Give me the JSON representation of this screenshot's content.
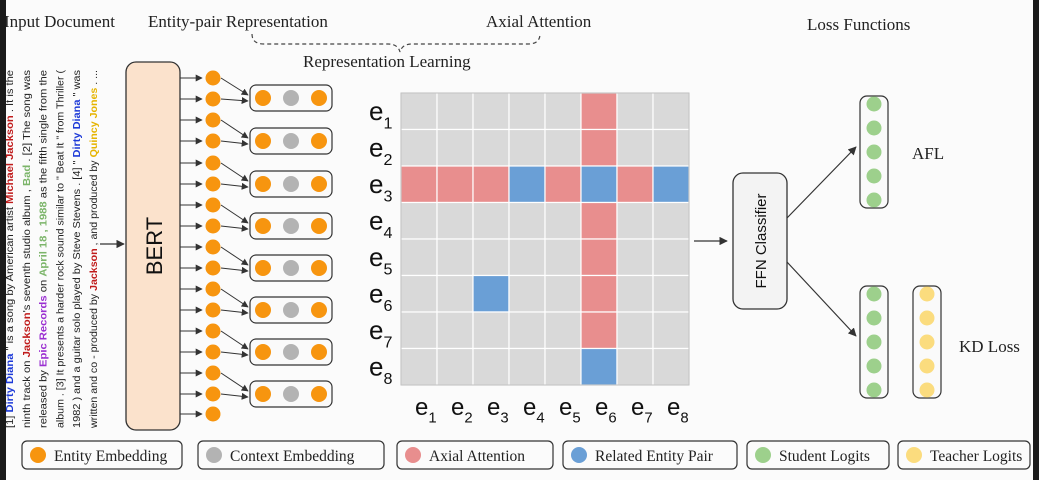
{
  "headings": {
    "input_document": "Input Document",
    "entity_pair_representation": "Entity-pair Representation",
    "axial_attention": "Axial Attention",
    "representation_learning": "Representation Learning",
    "loss_functions": "Loss Functions"
  },
  "document_lines": [
    [
      {
        "t": "[1] "
      },
      {
        "t": "Dirty Diana",
        "c": "blue"
      },
      {
        "t": " \" is a song by American artist "
      },
      {
        "t": "Michael Jackson",
        "c": "red"
      },
      {
        "t": " . It is the"
      }
    ],
    [
      {
        "t": "ninth track on "
      },
      {
        "t": "Jackson",
        "c": "red"
      },
      {
        "t": "'s seventh studio album , "
      },
      {
        "t": "Bad",
        "c": "green"
      },
      {
        "t": " . [2] The song was"
      }
    ],
    [
      {
        "t": "released by "
      },
      {
        "t": "Epic Records",
        "c": "purple"
      },
      {
        "t": " on "
      },
      {
        "t": "April 18 , 1988",
        "c": "green"
      },
      {
        "t": " as the fifth single from the"
      }
    ],
    [
      {
        "t": "album . [3] It presents a harder rock sound similar to \" Beat It \" from Thriller ("
      }
    ],
    [
      {
        "t": "1982 ) and a guitar solo played by Steve Stevens . [4] \" "
      },
      {
        "t": "Dirty Diana",
        "c": "blue"
      },
      {
        "t": " \" was"
      }
    ],
    [
      {
        "t": "written and co - produced by "
      },
      {
        "t": "Jackson",
        "c": "red"
      },
      {
        "t": " , and produced by "
      },
      {
        "t": "Quincy Jones",
        "c": "yellow"
      },
      {
        "t": " . ..."
      }
    ]
  ],
  "bert_label": "BERT",
  "ffn_label": "FFN Classifier",
  "matrix": {
    "rows": 8,
    "cols": 8,
    "axial_row": 3,
    "axial_col": 6,
    "row_labels": [
      {
        "base": "e",
        "sub": "1"
      },
      {
        "base": "e",
        "sub": "2"
      },
      {
        "base": "e",
        "sub": "3"
      },
      {
        "base": "e",
        "sub": "4"
      },
      {
        "base": "e",
        "sub": "5"
      },
      {
        "base": "e",
        "sub": "6"
      },
      {
        "base": "e",
        "sub": "7"
      },
      {
        "base": "e",
        "sub": "8"
      }
    ],
    "col_labels": [
      {
        "base": "e",
        "sub": "1"
      },
      {
        "base": "e",
        "sub": "2"
      },
      {
        "base": "e",
        "sub": "3"
      },
      {
        "base": "e",
        "sub": "4"
      },
      {
        "base": "e",
        "sub": "5"
      },
      {
        "base": "e",
        "sub": "6"
      },
      {
        "base": "e",
        "sub": "7"
      },
      {
        "base": "e",
        "sub": "8"
      }
    ],
    "related_pairs": [
      [
        3,
        4
      ],
      [
        3,
        6
      ],
      [
        3,
        8
      ],
      [
        6,
        3
      ],
      [
        8,
        6
      ]
    ]
  },
  "loss_labels": {
    "afl": "AFL",
    "kd": "KD Loss"
  },
  "legend": [
    {
      "type": "entity",
      "label": "Entity Embedding"
    },
    {
      "type": "context",
      "label": "Context Embedding"
    },
    {
      "type": "axial",
      "label": "Axial Attention"
    },
    {
      "type": "related",
      "label": "Related Entity Pair"
    },
    {
      "type": "student",
      "label": "Student Logits"
    },
    {
      "type": "teacher",
      "label": "Teacher Logits"
    }
  ],
  "colors": {
    "entity": "#f7950f",
    "context": "#b3b3b3",
    "axial": "#e88e8e",
    "related": "#6a9fd6",
    "student": "#9dd08c",
    "teacher": "#fbdc7e",
    "cell": "#d9d9d9",
    "bert_fill": "#fbe2cc",
    "text_blue": "#1d3ad8",
    "text_red": "#c01b1b",
    "text_green": "#7cb56a",
    "text_purple": "#9a2fd1",
    "text_yellow": "#e6b400"
  }
}
